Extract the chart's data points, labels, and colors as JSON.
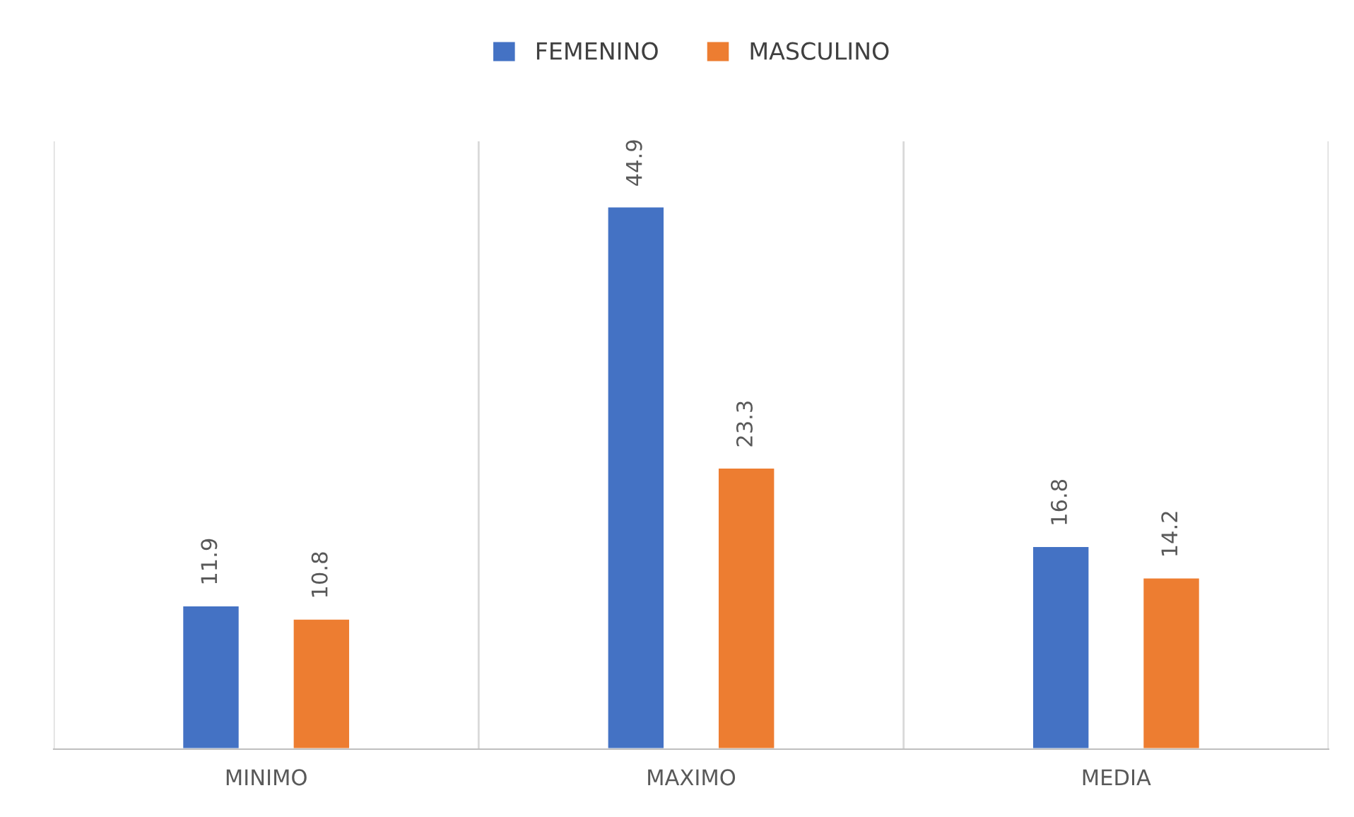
{
  "chart_data": {
    "type": "bar",
    "categories": [
      "MINIMO",
      "MAXIMO",
      "MEDIA"
    ],
    "series": [
      {
        "name": "FEMENINO",
        "color": "#4472c4",
        "values": [
          11.9,
          44.9,
          16.8
        ]
      },
      {
        "name": "MASCULINO",
        "color": "#ed7d31",
        "values": [
          10.8,
          23.3,
          14.2
        ]
      }
    ],
    "data_labels": true,
    "grid": "x",
    "legend": "top"
  }
}
